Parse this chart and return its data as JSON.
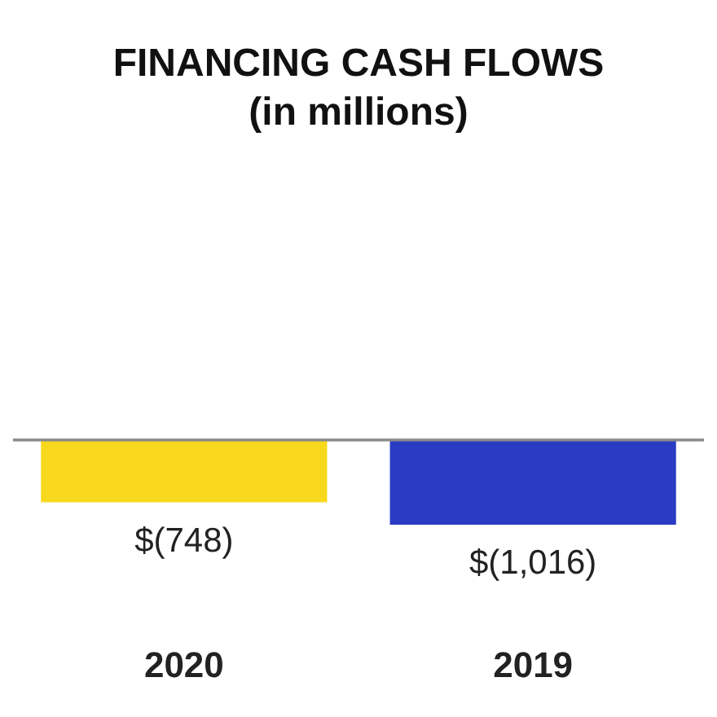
{
  "chart_data": {
    "type": "bar",
    "title": "FINANCING CASH FLOWS",
    "subtitle": "(in millions)",
    "categories": [
      "2020",
      "2019"
    ],
    "values": [
      -748,
      -1016
    ],
    "colors": [
      "#f8d81c",
      "#2a3cc4"
    ],
    "value_labels": [
      "$(748)",
      "$(1,016)"
    ]
  }
}
